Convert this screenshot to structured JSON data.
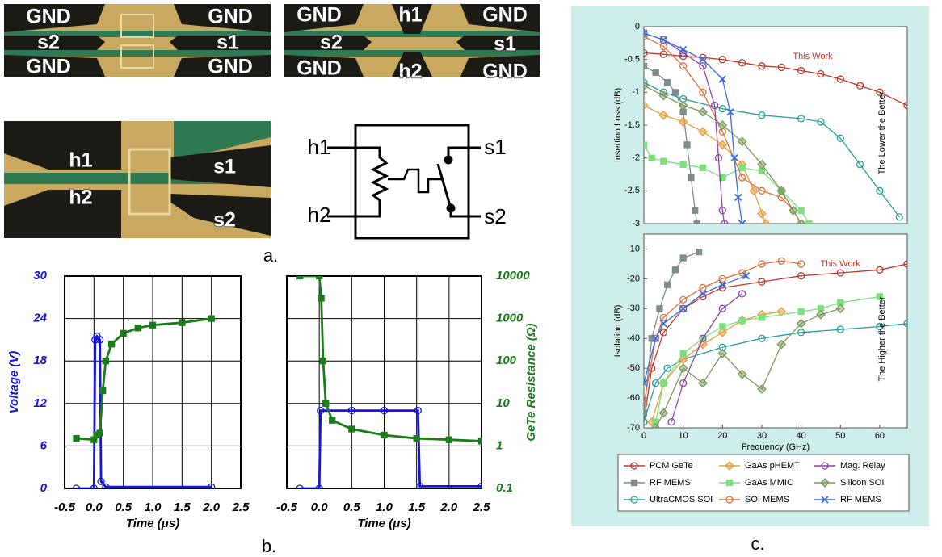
{
  "figure": {
    "panel_a": {
      "photos": [
        {
          "labels": [
            "GND",
            "GND",
            "s2",
            "s1",
            "GND",
            "GND"
          ]
        },
        {
          "labels": [
            "GND",
            "h1",
            "GND",
            "s2",
            "s1",
            "GND",
            "h2",
            "GND"
          ]
        },
        {
          "labels": [
            "h1",
            "s1",
            "h2",
            "s2"
          ]
        }
      ],
      "schematic": {
        "labels": [
          "h1",
          "s1",
          "h2",
          "s2"
        ]
      },
      "caption": "a."
    },
    "caption_b": "b.",
    "caption_c": "c."
  },
  "chart_data": [
    {
      "type": "line",
      "xlabel": "Time (μs)",
      "ylabel": "Voltage (V)",
      "xlim": [
        -0.5,
        2.5
      ],
      "xticks": [
        -0.5,
        {
          "value": 0,
          "label": "0.0"
        },
        0.5,
        {
          "value": 1,
          "label": "1.0"
        },
        1.5,
        {
          "value": 2,
          "label": "2.0"
        },
        2.5
      ],
      "ylim": [
        0,
        30
      ],
      "yticks": [
        0,
        6,
        12,
        18,
        24,
        30
      ],
      "y2lim": [
        0.1,
        10000
      ],
      "y2scale": "log",
      "grid": true,
      "series": [
        {
          "color": "#1414dc",
          "x": [
            -0.3,
            0,
            0.02,
            0.05,
            0.1,
            0.12,
            0.2,
            2.0
          ],
          "values": [
            0,
            0,
            21,
            21.5,
            21,
            1,
            0.2,
            0.2
          ]
        },
        {
          "color": "#1a7d1a",
          "axis": "y2",
          "x": [
            -0.3,
            0,
            0.05,
            0.1,
            0.15,
            0.2,
            0.3,
            0.5,
            0.75,
            1.0,
            1.5,
            2.0
          ],
          "values": [
            1.5,
            1.4,
            1.8,
            2,
            20,
            100,
            250,
            450,
            600,
            700,
            800,
            1000
          ]
        }
      ]
    },
    {
      "type": "line",
      "xlabel": "Time (μs)",
      "y2label": "GeTe Resistance (Ω)",
      "xlim": [
        -0.5,
        2.5
      ],
      "xticks": [
        -0.5,
        {
          "value": 0,
          "label": "0.0"
        },
        0.5,
        {
          "value": 1,
          "label": "1.0"
        },
        1.5,
        {
          "value": 2,
          "label": "2.0"
        },
        2.5
      ],
      "ylim": [
        0,
        30
      ],
      "y2lim": [
        0.1,
        10000
      ],
      "y2scale": "log",
      "y2ticks": [
        0.1,
        1,
        10,
        100,
        1000,
        10000
      ],
      "grid": true,
      "series": [
        {
          "color": "#1414dc",
          "x": [
            -0.3,
            0,
            0.02,
            0.5,
            1.0,
            1.52,
            1.55,
            2.5
          ],
          "values": [
            0,
            0,
            11,
            11,
            11,
            11,
            0.3,
            0.3
          ]
        },
        {
          "color": "#1a7d1a",
          "axis": "y2",
          "x": [
            -0.3,
            0,
            0.03,
            0.06,
            0.1,
            0.2,
            0.5,
            1.0,
            1.5,
            2.0,
            2.5
          ],
          "values": [
            10000,
            10000,
            3000,
            100,
            10,
            4,
            2.5,
            1.8,
            1.5,
            1.4,
            1.3
          ]
        }
      ]
    },
    {
      "type": "line",
      "ylabel": "Insertion Loss (dB)",
      "annotation": "This Work",
      "arrow_text": "The Lower the Better",
      "xlim": [
        0,
        67
      ],
      "ylim": [
        -3,
        0
      ],
      "yticks": [
        -3,
        -2.5,
        -2,
        -1.5,
        -1,
        -0.5,
        0
      ],
      "legend": "bottom",
      "series": [
        {
          "name": "PCM GeTe",
          "color": "#c0392b",
          "marker": "circle",
          "x": [
            0,
            5,
            10,
            15,
            20,
            25,
            30,
            35,
            40,
            45,
            50,
            55,
            60,
            67
          ],
          "values": [
            -0.4,
            -0.42,
            -0.45,
            -0.47,
            -0.5,
            -0.55,
            -0.6,
            -0.62,
            -0.67,
            -0.72,
            -0.8,
            -0.9,
            -1.0,
            -1.2
          ]
        },
        {
          "name": "RF MEMS",
          "color": "#7f8c8d",
          "marker": "square",
          "x": [
            0,
            3,
            6,
            8,
            10,
            11,
            12,
            13,
            13.5
          ],
          "values": [
            -0.6,
            -0.7,
            -0.85,
            -1.0,
            -1.3,
            -1.8,
            -2.3,
            -2.8,
            -3
          ]
        },
        {
          "name": "UltraCMOS SOI",
          "color": "#2aa198",
          "marker": "circle",
          "x": [
            0,
            5,
            10,
            20,
            30,
            40,
            45,
            50,
            55,
            60,
            65
          ],
          "values": [
            -0.85,
            -1.0,
            -1.1,
            -1.25,
            -1.35,
            -1.4,
            -1.45,
            -1.7,
            -2.1,
            -2.5,
            -2.9
          ]
        },
        {
          "name": "GaAs pHEMT",
          "color": "#e0a040",
          "marker": "diamond",
          "x": [
            0,
            5,
            10,
            15,
            20,
            25,
            28,
            30,
            31
          ],
          "values": [
            -1.2,
            -1.35,
            -1.45,
            -1.6,
            -1.8,
            -2.1,
            -2.5,
            -2.85,
            -3
          ]
        },
        {
          "name": "GaAs MMIC",
          "color": "#7be07b",
          "marker": "square",
          "x": [
            0,
            2,
            5,
            10,
            15,
            20,
            25,
            30,
            35,
            40,
            42
          ],
          "values": [
            -1.8,
            -2.0,
            -2.05,
            -2.1,
            -2.15,
            -2.3,
            -2.15,
            -2.2,
            -2.5,
            -2.8,
            -3
          ]
        },
        {
          "name": "SOI MEMS",
          "color": "#e07040",
          "marker": "circle",
          "x": [
            0,
            5,
            10,
            15,
            20,
            25,
            30,
            35,
            38,
            40
          ],
          "values": [
            -0.15,
            -0.3,
            -0.6,
            -1.0,
            -1.6,
            -2.3,
            -2.5,
            -2.6,
            -2.8,
            -3
          ]
        },
        {
          "name": "Mag. Relay",
          "color": "#8e44ad",
          "marker": "circle",
          "x": [
            0,
            5,
            10,
            15,
            18,
            19,
            20,
            20.5
          ],
          "values": [
            -0.1,
            -0.2,
            -0.4,
            -0.6,
            -1.2,
            -2.0,
            -2.8,
            -3
          ]
        },
        {
          "name": "Silicon SOI",
          "color": "#7a9a5a",
          "marker": "diamond",
          "x": [
            0,
            5,
            10,
            15,
            20,
            25,
            30,
            35,
            38,
            40
          ],
          "values": [
            -0.9,
            -1.05,
            -1.2,
            -1.3,
            -1.5,
            -1.75,
            -2.1,
            -2.5,
            -2.8,
            -3
          ]
        },
        {
          "name": "RF MEMS",
          "color": "#3a6fd8",
          "marker": "x",
          "x": [
            0,
            5,
            10,
            15,
            20,
            22,
            23,
            24,
            25
          ],
          "values": [
            -0.1,
            -0.2,
            -0.35,
            -0.5,
            -0.8,
            -1.3,
            -2.0,
            -2.6,
            -3
          ]
        }
      ]
    },
    {
      "type": "line",
      "xlabel": "Frequency (GHz)",
      "ylabel": "Isolation (dB)",
      "annotation": "This Work",
      "arrow_text": "The Higher the Better",
      "xlim": [
        0,
        67
      ],
      "xticks": [
        0,
        10,
        20,
        30,
        40,
        50,
        60
      ],
      "ylim": [
        -70,
        -5
      ],
      "yticks": [
        -70,
        -60,
        -50,
        -40,
        -30,
        -20,
        -10
      ],
      "series": [
        {
          "color": "#c0392b",
          "x": [
            0,
            2,
            5,
            10,
            15,
            20,
            30,
            40,
            50,
            60,
            67
          ],
          "values": [
            -68,
            -50,
            -38,
            -30,
            -26,
            -23,
            -21,
            -19,
            -18,
            -17,
            -15
          ]
        },
        {
          "color": "#7f8c8d",
          "x": [
            0,
            2,
            4,
            6,
            8,
            10,
            14
          ],
          "values": [
            -65,
            -40,
            -30,
            -22,
            -17,
            -13,
            -11
          ]
        },
        {
          "color": "#2aa198",
          "x": [
            0,
            3,
            6,
            10,
            20,
            30,
            40,
            50,
            60,
            67
          ],
          "values": [
            -68,
            -55,
            -50,
            -47,
            -43,
            -40,
            -38,
            -37,
            -36,
            -35
          ]
        },
        {
          "color": "#e0a040",
          "x": [
            2,
            5,
            10,
            15,
            20,
            25,
            30,
            35
          ],
          "values": [
            -68,
            -55,
            -47,
            -42,
            -38,
            -34,
            -32,
            -31
          ]
        },
        {
          "color": "#7be07b",
          "x": [
            3,
            5,
            10,
            15,
            20,
            25,
            30,
            40,
            45,
            50,
            60
          ],
          "values": [
            -68,
            -55,
            -45,
            -40,
            -36,
            -34,
            -33,
            -31,
            -30,
            -28,
            -26
          ]
        },
        {
          "color": "#e07040",
          "x": [
            0,
            3,
            5,
            10,
            15,
            20,
            25,
            30,
            35,
            40
          ],
          "values": [
            -62,
            -40,
            -33,
            -27,
            -23,
            -20,
            -18,
            -15,
            -14,
            -15
          ]
        },
        {
          "color": "#8e44ad",
          "x": [
            7,
            10,
            15,
            20,
            25
          ],
          "values": [
            -68,
            -55,
            -40,
            -30,
            -25
          ]
        },
        {
          "color": "#7a9a5a",
          "x": [
            3,
            5,
            10,
            15,
            20,
            25,
            30,
            35,
            40,
            45,
            50
          ],
          "values": [
            -70,
            -65,
            -50,
            -55,
            -45,
            -52,
            -57,
            -42,
            -35,
            -32,
            -30
          ]
        },
        {
          "color": "#3a6fd8",
          "x": [
            0,
            3,
            5,
            10,
            15,
            20,
            26
          ],
          "values": [
            -55,
            -40,
            -35,
            -30,
            -25,
            -22,
            -19
          ]
        }
      ]
    }
  ]
}
